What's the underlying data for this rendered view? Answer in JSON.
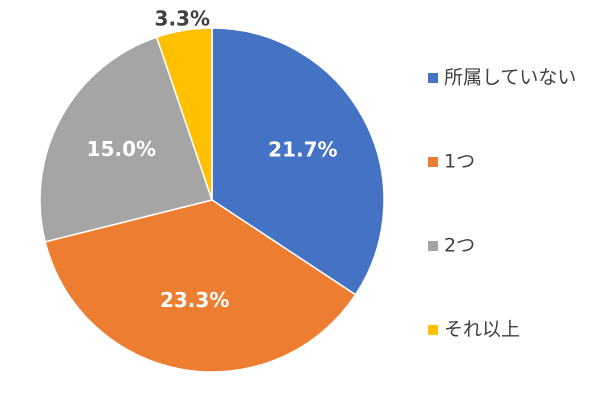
{
  "chart_data": {
    "type": "pie",
    "categories": [
      "所属していない",
      "1つ",
      "2つ",
      "それ以上"
    ],
    "values": [
      21.7,
      23.3,
      15.0,
      3.3
    ],
    "value_labels": [
      "21.7%",
      "23.3%",
      "15.0%",
      "3.3%"
    ],
    "colors": [
      "#4472c4",
      "#ed7d31",
      "#a5a5a5",
      "#ffc000"
    ],
    "legend": "right"
  }
}
